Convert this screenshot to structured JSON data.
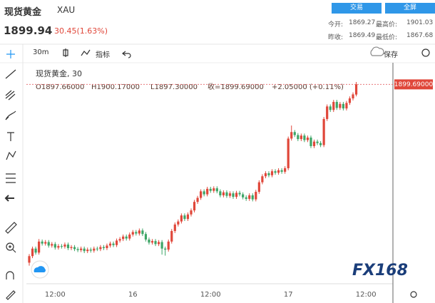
{
  "header": {
    "name": "现货黄金",
    "symbol": "XAU",
    "buttons": [
      "交易",
      "全屏"
    ],
    "price": "1899.94",
    "change": "30.45(1.63%)",
    "stats": [
      {
        "label": "今开:",
        "value": "1869.27"
      },
      {
        "label": "最高价:",
        "value": "1901.03"
      },
      {
        "label": "昨收:",
        "value": "1869.49"
      },
      {
        "label": "最低价:",
        "value": "1867.68"
      }
    ]
  },
  "toolbar": {
    "interval": "30m",
    "indicators": "指标",
    "save": "保存"
  },
  "chart_data": {
    "type": "candlestick",
    "legend_title": "现货黄金, 30",
    "legend_values": [
      "O1897.66000",
      "H1900.17000",
      "L1897.30000",
      "收=1899.69000",
      "+2.05000 (+0.11%)"
    ],
    "categories": [
      null,
      null,
      null,
      null,
      null,
      null,
      null,
      null,
      "12:00",
      null,
      null,
      null,
      null,
      null,
      null,
      null,
      null,
      null,
      null,
      null,
      null,
      null,
      null,
      null,
      null,
      null,
      null,
      null,
      null,
      null,
      null,
      null,
      "16",
      null,
      null,
      null,
      null,
      null,
      null,
      null,
      null,
      null,
      null,
      null,
      null,
      null,
      null,
      null,
      null,
      null,
      null,
      null,
      null,
      null,
      null,
      null,
      "12:00",
      null,
      null,
      null,
      null,
      null,
      null,
      null,
      null,
      null,
      null,
      null,
      null,
      null,
      null,
      null,
      null,
      null,
      null,
      null,
      null,
      null,
      null,
      null,
      "17",
      null,
      null,
      null,
      null,
      null,
      null,
      null,
      null,
      null,
      null,
      null,
      null,
      null,
      null,
      null,
      null,
      null,
      null,
      null,
      null,
      null,
      null,
      null,
      "12:00"
    ],
    "open": [
      1864.2,
      1865.5,
      1867.0,
      1866.2,
      1868.4,
      1868.0,
      1868.3,
      1867.6,
      1867.9,
      1867.2,
      1867.5,
      1867.4,
      1867.8,
      1867.1,
      1867.3,
      1866.9,
      1866.7,
      1867.0,
      1866.5,
      1866.8,
      1866.6,
      1867.0,
      1866.9,
      1867.3,
      1867.1,
      1867.6,
      1868.0,
      1867.7,
      1868.6,
      1868.9,
      1869.4,
      1869.0,
      1869.8,
      1870.3,
      1870.0,
      1870.6,
      1869.9,
      1868.8,
      1868.2,
      1868.5,
      1867.9,
      1868.3,
      1867.0,
      1866.8,
      1868.4,
      1870.5,
      1871.8,
      1872.4,
      1873.6,
      1872.9,
      1873.8,
      1874.6,
      1876.3,
      1877.1,
      1878.4,
      1877.8,
      1878.9,
      1878.5,
      1879.0,
      1878.4,
      1877.6,
      1878.2,
      1877.5,
      1878.0,
      1877.3,
      1878.1,
      1877.8,
      1877.2,
      1876.9,
      1877.6,
      1876.8,
      1878.3,
      1880.2,
      1881.4,
      1882.0,
      1881.6,
      1882.4,
      1882.1,
      1882.6,
      1882.3,
      1883.0,
      1888.9,
      1890.2,
      1889.6,
      1888.8,
      1889.5,
      1888.6,
      1889.1,
      1887.4,
      1888.3,
      1888.0,
      1887.6,
      1892.8,
      1895.3,
      1894.6,
      1896.2,
      1895.0,
      1895.8,
      1894.9,
      1896.0,
      1896.9,
      1897.66,
      null,
      null,
      null
    ],
    "high": [
      1865.9,
      1867.4,
      1867.4,
      1868.9,
      1868.8,
      1868.7,
      1868.7,
      1868.3,
      1868.3,
      1867.9,
      1867.9,
      1868.2,
      1868.2,
      1867.7,
      1867.7,
      1867.3,
      1867.4,
      1867.4,
      1867.2,
      1867.2,
      1867.4,
      1867.4,
      1867.7,
      1867.7,
      1868.0,
      1868.4,
      1868.4,
      1869.0,
      1869.3,
      1869.8,
      1869.8,
      1870.2,
      1870.7,
      1870.7,
      1871.0,
      1871.0,
      1870.3,
      1869.2,
      1868.9,
      1868.9,
      1868.7,
      1868.7,
      1867.4,
      1868.8,
      1870.9,
      1872.2,
      1872.8,
      1874.0,
      1874.0,
      1874.2,
      1875.0,
      1876.7,
      1877.5,
      1878.8,
      1878.8,
      1879.3,
      1879.3,
      1879.4,
      1879.4,
      1878.8,
      1878.6,
      1878.6,
      1878.4,
      1878.4,
      1878.5,
      1878.5,
      1878.2,
      1877.6,
      1878.0,
      1878.0,
      1878.7,
      1880.6,
      1881.8,
      1882.4,
      1882.4,
      1882.8,
      1882.8,
      1883.0,
      1883.0,
      1883.4,
      1889.3,
      1891.5,
      1890.6,
      1890.0,
      1889.9,
      1889.9,
      1889.5,
      1889.5,
      1888.7,
      1888.7,
      1888.4,
      1893.2,
      1895.7,
      1895.7,
      1896.6,
      1896.6,
      1896.2,
      1896.2,
      1896.4,
      1897.3,
      1898.1,
      1900.17,
      null,
      null,
      null
    ],
    "low": [
      1863.6,
      1865.1,
      1865.8,
      1865.8,
      1867.6,
      1867.6,
      1867.2,
      1867.2,
      1866.8,
      1866.8,
      1867.0,
      1867.0,
      1866.7,
      1866.7,
      1866.5,
      1866.3,
      1866.3,
      1866.1,
      1866.1,
      1866.2,
      1866.2,
      1866.5,
      1866.5,
      1866.7,
      1866.7,
      1867.2,
      1867.3,
      1867.3,
      1868.2,
      1868.5,
      1868.6,
      1868.6,
      1869.4,
      1869.6,
      1869.6,
      1869.5,
      1868.4,
      1867.8,
      1867.8,
      1867.5,
      1867.5,
      1865.8,
      1865.6,
      1866.4,
      1868.0,
      1870.1,
      1871.4,
      1872.0,
      1872.5,
      1872.5,
      1873.4,
      1874.2,
      1875.9,
      1876.7,
      1877.4,
      1877.4,
      1878.1,
      1878.1,
      1878.0,
      1877.2,
      1877.2,
      1877.1,
      1877.1,
      1876.9,
      1876.9,
      1877.4,
      1876.8,
      1876.5,
      1876.5,
      1876.4,
      1876.4,
      1877.9,
      1879.8,
      1881.0,
      1881.2,
      1881.2,
      1881.7,
      1881.7,
      1881.9,
      1881.9,
      1882.6,
      1888.5,
      1889.2,
      1888.4,
      1888.4,
      1888.2,
      1888.2,
      1887.0,
      1887.0,
      1887.6,
      1887.2,
      1887.2,
      1892.4,
      1894.2,
      1894.2,
      1894.6,
      1894.6,
      1894.5,
      1894.5,
      1895.6,
      1896.5,
      1897.3,
      null,
      null,
      null
    ],
    "close": [
      1865.5,
      1867.0,
      1866.2,
      1868.4,
      1868.0,
      1868.3,
      1867.6,
      1867.9,
      1867.2,
      1867.5,
      1867.4,
      1867.8,
      1867.1,
      1867.3,
      1866.9,
      1866.7,
      1867.0,
      1866.5,
      1866.8,
      1866.6,
      1867.0,
      1866.9,
      1867.3,
      1867.1,
      1867.6,
      1868.0,
      1867.7,
      1868.6,
      1868.9,
      1869.4,
      1869.0,
      1869.8,
      1870.3,
      1870.0,
      1870.6,
      1869.9,
      1868.8,
      1868.2,
      1868.5,
      1867.9,
      1868.3,
      1867.0,
      1866.8,
      1868.4,
      1870.5,
      1871.8,
      1872.4,
      1873.6,
      1872.9,
      1873.8,
      1874.6,
      1876.3,
      1877.1,
      1878.4,
      1877.8,
      1878.9,
      1878.5,
      1879.0,
      1878.4,
      1877.6,
      1878.2,
      1877.5,
      1878.0,
      1877.3,
      1878.1,
      1877.8,
      1877.2,
      1876.9,
      1877.6,
      1876.8,
      1878.3,
      1880.2,
      1881.4,
      1882.0,
      1881.6,
      1882.4,
      1882.1,
      1882.6,
      1882.3,
      1883.0,
      1888.9,
      1890.2,
      1889.6,
      1888.8,
      1889.5,
      1888.6,
      1889.1,
      1887.4,
      1888.3,
      1888.0,
      1887.6,
      1892.8,
      1895.3,
      1894.6,
      1896.2,
      1895.0,
      1895.8,
      1894.9,
      1896.0,
      1896.9,
      1897.7,
      1899.69,
      null,
      null,
      null
    ],
    "ylim": [
      1860,
      1904
    ],
    "up_color": "#e0473a",
    "down_color": "#3da566",
    "price_line": {
      "value": 1899.69,
      "label": "1899.69000",
      "color": "#e8777a"
    }
  },
  "watermark": "FX168"
}
